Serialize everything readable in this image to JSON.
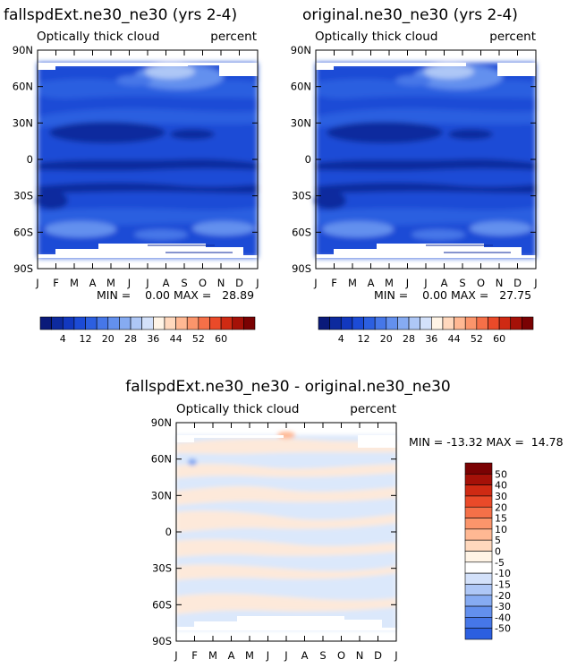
{
  "colors": {
    "abs_scale": [
      "#0a1a7a",
      "#0d2a9e",
      "#1238bf",
      "#1c4bd6",
      "#2c5fe0",
      "#4677e8",
      "#6390ee",
      "#86abf2",
      "#aec7f6",
      "#d3e1fa",
      "#fff4e6",
      "#ffd8bd",
      "#ffb893",
      "#fb956b",
      "#f57048",
      "#ea4a29",
      "#cf2a13",
      "#a51108",
      "#7a0203"
    ],
    "diff_scale": [
      "#7a0203",
      "#a51108",
      "#cf2a13",
      "#ea4a29",
      "#f57048",
      "#fb956b",
      "#ffb893",
      "#ffd8bd",
      "#fff4e6",
      "#ffffff",
      "#d3e1fa",
      "#aec7f6",
      "#86abf2",
      "#6390ee",
      "#4677e8",
      "#2c5fe0",
      "#1c4bd6",
      "#1238bf",
      "#0d2a9e",
      "#0a1a7a"
    ]
  },
  "panels": {
    "left": {
      "title": "fallspdExt.ne30_ne30 (yrs 2-4)",
      "subtitle_left": "Optically thick cloud",
      "subtitle_right": "percent",
      "stats": "MIN =    0.00 MAX =   28.89"
    },
    "right": {
      "title": "original.ne30_ne30 (yrs 2-4)",
      "subtitle_left": "Optically thick cloud",
      "subtitle_right": "percent",
      "stats": "MIN =    0.00 MAX =   27.75"
    },
    "diff": {
      "title": "fallspdExt.ne30_ne30 - original.ne30_ne30",
      "subtitle_left": "Optically thick cloud",
      "subtitle_right": "percent",
      "stats": "MIN = -13.32 MAX =  14.78"
    }
  },
  "chart_data": [
    {
      "type": "heatmap",
      "title": "fallspdExt.ne30_ne30 (yrs 2-4)",
      "subtitle": "Optically thick cloud",
      "units": "percent",
      "x_categories": [
        "J",
        "F",
        "M",
        "A",
        "M",
        "J",
        "J",
        "A",
        "S",
        "O",
        "N",
        "D",
        "J"
      ],
      "y_ticks": [
        "90N",
        "60N",
        "30N",
        "0",
        "30S",
        "60S",
        "90S"
      ],
      "y_range": [
        -90,
        90
      ],
      "min": 0.0,
      "max": 28.89,
      "colorbar_labels": [
        "4",
        "12",
        "20",
        "28",
        "36",
        "44",
        "52",
        "60"
      ]
    },
    {
      "type": "heatmap",
      "title": "original.ne30_ne30 (yrs 2-4)",
      "subtitle": "Optically thick cloud",
      "units": "percent",
      "x_categories": [
        "J",
        "F",
        "M",
        "A",
        "M",
        "J",
        "J",
        "A",
        "S",
        "O",
        "N",
        "D",
        "J"
      ],
      "y_ticks": [
        "90N",
        "60N",
        "30N",
        "0",
        "30S",
        "60S",
        "90S"
      ],
      "y_range": [
        -90,
        90
      ],
      "min": 0.0,
      "max": 27.75,
      "colorbar_labels": [
        "4",
        "12",
        "20",
        "28",
        "36",
        "44",
        "52",
        "60"
      ]
    },
    {
      "type": "heatmap",
      "title": "fallspdExt.ne30_ne30 - original.ne30_ne30",
      "subtitle": "Optically thick cloud",
      "units": "percent",
      "x_categories": [
        "J",
        "F",
        "M",
        "A",
        "M",
        "J",
        "J",
        "A",
        "S",
        "O",
        "N",
        "D",
        "J"
      ],
      "y_ticks": [
        "90N",
        "60N",
        "30N",
        "0",
        "30S",
        "60S",
        "90S"
      ],
      "y_range": [
        -90,
        90
      ],
      "min": -13.32,
      "max": 14.78,
      "colorbar_labels": [
        "50",
        "40",
        "30",
        "20",
        "15",
        "10",
        "5",
        "0",
        "-5",
        "-10",
        "-15",
        "-20",
        "-30",
        "-40",
        "-50"
      ]
    }
  ]
}
